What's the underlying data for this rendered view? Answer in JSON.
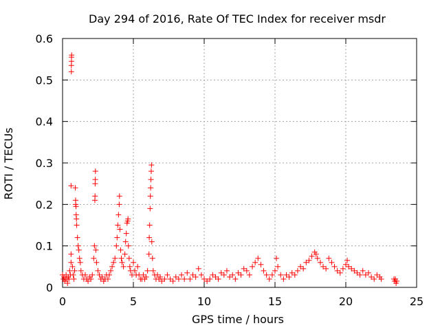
{
  "chart_data": {
    "type": "scatter",
    "title": "Day 294 of 2016, Rate Of TEC Index for receiver msdr",
    "xlabel": "GPS time / hours",
    "ylabel": "ROTI / TECUs",
    "xlim": [
      0,
      25
    ],
    "ylim": [
      0,
      0.6
    ],
    "xticks": [
      0,
      5,
      10,
      15,
      20,
      25
    ],
    "yticks": [
      0,
      0.1,
      0.2,
      0.3,
      0.4,
      0.5,
      0.6
    ],
    "xtick_labels": [
      "0",
      "5",
      "10",
      "15",
      "20",
      "25"
    ],
    "ytick_labels": [
      "0",
      "0.1",
      "0.2",
      "0.3",
      "0.4",
      "0.5",
      "0.6"
    ],
    "grid": true,
    "marker": "+",
    "color": "#ff0000",
    "series": [
      {
        "name": "ROTI",
        "points": [
          [
            0.0,
            0.03
          ],
          [
            0.05,
            0.02
          ],
          [
            0.1,
            0.025
          ],
          [
            0.15,
            0.015
          ],
          [
            0.2,
            0.02
          ],
          [
            0.25,
            0.03
          ],
          [
            0.3,
            0.02
          ],
          [
            0.35,
            0.01
          ],
          [
            0.4,
            0.025
          ],
          [
            0.45,
            0.02
          ],
          [
            0.5,
            0.04
          ],
          [
            0.55,
            0.03
          ],
          [
            0.6,
            0.06
          ],
          [
            0.6,
            0.08
          ],
          [
            0.62,
            0.52
          ],
          [
            0.62,
            0.535
          ],
          [
            0.63,
            0.545
          ],
          [
            0.63,
            0.555
          ],
          [
            0.64,
            0.56
          ],
          [
            0.6,
            0.245
          ],
          [
            0.7,
            0.05
          ],
          [
            0.75,
            0.03
          ],
          [
            0.8,
            0.02
          ],
          [
            0.85,
            0.04
          ],
          [
            0.9,
            0.24
          ],
          [
            0.92,
            0.21
          ],
          [
            0.93,
            0.2
          ],
          [
            0.95,
            0.195
          ],
          [
            0.96,
            0.175
          ],
          [
            0.98,
            0.165
          ],
          [
            1.0,
            0.15
          ],
          [
            1.05,
            0.12
          ],
          [
            1.1,
            0.1
          ],
          [
            1.15,
            0.09
          ],
          [
            1.2,
            0.07
          ],
          [
            1.25,
            0.06
          ],
          [
            1.3,
            0.04
          ],
          [
            1.4,
            0.03
          ],
          [
            1.5,
            0.02
          ],
          [
            1.6,
            0.03
          ],
          [
            1.7,
            0.02
          ],
          [
            1.8,
            0.015
          ],
          [
            1.9,
            0.025
          ],
          [
            2.0,
            0.02
          ],
          [
            2.1,
            0.03
          ],
          [
            2.2,
            0.07
          ],
          [
            2.25,
            0.1
          ],
          [
            2.28,
            0.21
          ],
          [
            2.29,
            0.22
          ],
          [
            2.3,
            0.25
          ],
          [
            2.31,
            0.26
          ],
          [
            2.32,
            0.28
          ],
          [
            2.35,
            0.09
          ],
          [
            2.4,
            0.06
          ],
          [
            2.5,
            0.04
          ],
          [
            2.6,
            0.03
          ],
          [
            2.7,
            0.02
          ],
          [
            2.8,
            0.025
          ],
          [
            2.9,
            0.015
          ],
          [
            3.0,
            0.02
          ],
          [
            3.1,
            0.03
          ],
          [
            3.2,
            0.02
          ],
          [
            3.3,
            0.03
          ],
          [
            3.4,
            0.04
          ],
          [
            3.5,
            0.05
          ],
          [
            3.6,
            0.06
          ],
          [
            3.7,
            0.07
          ],
          [
            3.8,
            0.1
          ],
          [
            3.85,
            0.12
          ],
          [
            3.9,
            0.15
          ],
          [
            3.95,
            0.175
          ],
          [
            4.0,
            0.2
          ],
          [
            4.02,
            0.22
          ],
          [
            4.05,
            0.14
          ],
          [
            4.1,
            0.09
          ],
          [
            4.15,
            0.07
          ],
          [
            4.2,
            0.06
          ],
          [
            4.3,
            0.05
          ],
          [
            4.4,
            0.08
          ],
          [
            4.45,
            0.11
          ],
          [
            4.5,
            0.13
          ],
          [
            4.55,
            0.155
          ],
          [
            4.6,
            0.16
          ],
          [
            4.62,
            0.165
          ],
          [
            4.65,
            0.1
          ],
          [
            4.7,
            0.07
          ],
          [
            4.75,
            0.05
          ],
          [
            4.8,
            0.04
          ],
          [
            4.9,
            0.03
          ],
          [
            5.0,
            0.06
          ],
          [
            5.1,
            0.04
          ],
          [
            5.2,
            0.03
          ],
          [
            5.3,
            0.05
          ],
          [
            5.4,
            0.03
          ],
          [
            5.5,
            0.02
          ],
          [
            5.6,
            0.02
          ],
          [
            5.7,
            0.03
          ],
          [
            5.8,
            0.02
          ],
          [
            5.9,
            0.025
          ],
          [
            6.0,
            0.04
          ],
          [
            6.1,
            0.08
          ],
          [
            6.12,
            0.12
          ],
          [
            6.15,
            0.15
          ],
          [
            6.18,
            0.19
          ],
          [
            6.2,
            0.22
          ],
          [
            6.22,
            0.24
          ],
          [
            6.24,
            0.26
          ],
          [
            6.26,
            0.28
          ],
          [
            6.28,
            0.295
          ],
          [
            6.3,
            0.11
          ],
          [
            6.35,
            0.07
          ],
          [
            6.4,
            0.04
          ],
          [
            6.5,
            0.03
          ],
          [
            6.6,
            0.02
          ],
          [
            6.7,
            0.03
          ],
          [
            6.8,
            0.02
          ],
          [
            6.9,
            0.025
          ],
          [
            7.0,
            0.015
          ],
          [
            7.2,
            0.02
          ],
          [
            7.4,
            0.03
          ],
          [
            7.6,
            0.02
          ],
          [
            7.8,
            0.015
          ],
          [
            8.0,
            0.025
          ],
          [
            8.2,
            0.02
          ],
          [
            8.4,
            0.03
          ],
          [
            8.6,
            0.02
          ],
          [
            8.8,
            0.035
          ],
          [
            9.0,
            0.02
          ],
          [
            9.2,
            0.03
          ],
          [
            9.4,
            0.025
          ],
          [
            9.6,
            0.045
          ],
          [
            9.8,
            0.03
          ],
          [
            10.0,
            0.02
          ],
          [
            10.2,
            0.015
          ],
          [
            10.4,
            0.02
          ],
          [
            10.6,
            0.03
          ],
          [
            10.8,
            0.025
          ],
          [
            11.0,
            0.02
          ],
          [
            11.2,
            0.035
          ],
          [
            11.4,
            0.03
          ],
          [
            11.6,
            0.04
          ],
          [
            11.8,
            0.025
          ],
          [
            12.0,
            0.03
          ],
          [
            12.2,
            0.02
          ],
          [
            12.4,
            0.035
          ],
          [
            12.6,
            0.03
          ],
          [
            12.8,
            0.045
          ],
          [
            13.0,
            0.04
          ],
          [
            13.2,
            0.03
          ],
          [
            13.4,
            0.05
          ],
          [
            13.6,
            0.06
          ],
          [
            13.8,
            0.07
          ],
          [
            14.0,
            0.055
          ],
          [
            14.2,
            0.04
          ],
          [
            14.4,
            0.03
          ],
          [
            14.6,
            0.02
          ],
          [
            14.8,
            0.03
          ],
          [
            15.0,
            0.04
          ],
          [
            15.1,
            0.07
          ],
          [
            15.2,
            0.05
          ],
          [
            15.4,
            0.03
          ],
          [
            15.6,
            0.02
          ],
          [
            15.8,
            0.03
          ],
          [
            16.0,
            0.025
          ],
          [
            16.2,
            0.035
          ],
          [
            16.4,
            0.03
          ],
          [
            16.6,
            0.04
          ],
          [
            16.8,
            0.05
          ],
          [
            17.0,
            0.045
          ],
          [
            17.2,
            0.06
          ],
          [
            17.4,
            0.065
          ],
          [
            17.6,
            0.075
          ],
          [
            17.8,
            0.085
          ],
          [
            17.9,
            0.08
          ],
          [
            18.0,
            0.07
          ],
          [
            18.2,
            0.06
          ],
          [
            18.4,
            0.05
          ],
          [
            18.6,
            0.045
          ],
          [
            18.8,
            0.07
          ],
          [
            19.0,
            0.06
          ],
          [
            19.2,
            0.05
          ],
          [
            19.4,
            0.04
          ],
          [
            19.6,
            0.035
          ],
          [
            19.8,
            0.045
          ],
          [
            20.0,
            0.055
          ],
          [
            20.1,
            0.065
          ],
          [
            20.2,
            0.05
          ],
          [
            20.4,
            0.045
          ],
          [
            20.6,
            0.04
          ],
          [
            20.8,
            0.035
          ],
          [
            21.0,
            0.03
          ],
          [
            21.2,
            0.04
          ],
          [
            21.4,
            0.03
          ],
          [
            21.6,
            0.035
          ],
          [
            21.8,
            0.025
          ],
          [
            22.0,
            0.02
          ],
          [
            22.2,
            0.03
          ],
          [
            22.4,
            0.025
          ],
          [
            22.5,
            0.02
          ],
          [
            23.4,
            0.02
          ],
          [
            23.45,
            0.015
          ],
          [
            23.5,
            0.02
          ],
          [
            23.55,
            0.01
          ],
          [
            23.6,
            0.015
          ]
        ]
      }
    ]
  }
}
